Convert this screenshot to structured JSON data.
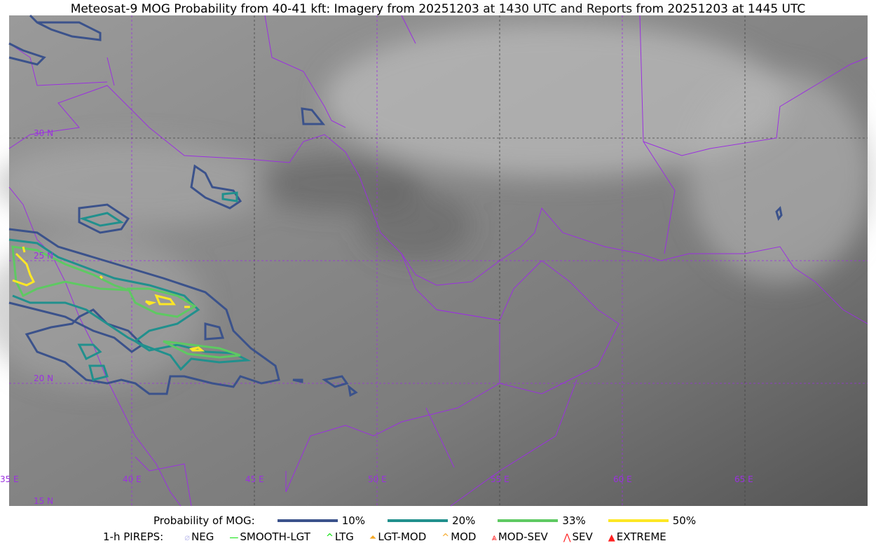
{
  "title": "Meteosat-9 MOG Probability from 40-41 kft: Imagery from 20251203 at 1430 UTC and Reports from 20251203 at 1445 UTC",
  "map": {
    "lon_labels": [
      "35 E",
      "40 E",
      "45 E",
      "50 E",
      "55 E",
      "60 E",
      "65 E"
    ],
    "lat_labels": [
      "30 N",
      "25 N",
      "20 N",
      "15 N"
    ],
    "extent": {
      "lon": [
        35,
        70
      ],
      "lat": [
        15,
        35
      ]
    },
    "border_color": "#9b30e0"
  },
  "legend": {
    "probability_label": "Probability of MOG:",
    "levels": [
      {
        "label": "10%",
        "color": "#3b528b"
      },
      {
        "label": "20%",
        "color": "#21908d"
      },
      {
        "label": "33%",
        "color": "#5ec962"
      },
      {
        "label": "50%",
        "color": "#fde725"
      }
    ],
    "pireps_label": "1-h PIREPS:",
    "pireps": [
      {
        "label": "NEG",
        "icon": "neg-icon",
        "color": "#c8c8f0"
      },
      {
        "label": "SMOOTH-LGT",
        "icon": "line-icon",
        "color": "#00e000"
      },
      {
        "label": "LTG",
        "icon": "caret-icon",
        "color": "#00e000"
      },
      {
        "label": "LGT-MOD",
        "icon": "caret-bar-icon",
        "color": "#f5a623"
      },
      {
        "label": "MOD",
        "icon": "caret-icon",
        "color": "#f5a623"
      },
      {
        "label": "MOD-SEV",
        "icon": "double-caret-bar-icon",
        "color": "#ff2020"
      },
      {
        "label": "SEV",
        "icon": "double-caret-icon",
        "color": "#ff2020"
      },
      {
        "label": "EXTREME",
        "icon": "filled-triangle-icon",
        "color": "#ff2020"
      }
    ]
  }
}
